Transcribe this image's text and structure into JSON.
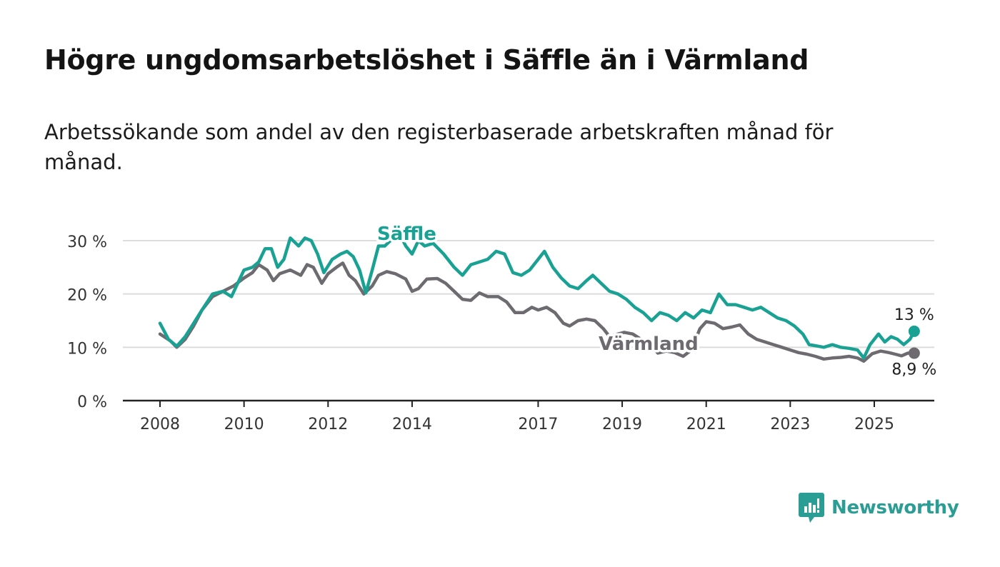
{
  "header": {
    "title": "Högre ungdomsarbetslöshet i Säffle än i Värmland",
    "subtitle": "Arbetssökande som andel av den registerbaserade arbetskraften månad för månad."
  },
  "brand": {
    "name": "Newsworthy",
    "icon": "chart-speech-bubble-icon",
    "color": "#2a9d94"
  },
  "chart_data": {
    "type": "line",
    "xlim": [
      2007.7,
      2026.5
    ],
    "ylim": [
      0,
      30
    ],
    "yticks": [
      0,
      10,
      20,
      30
    ],
    "ytick_labels": [
      "0 %",
      "10 %",
      "20 %",
      "30 %"
    ],
    "xticks": [
      2008,
      2010,
      2012,
      2014,
      2017,
      2019,
      2021,
      2023,
      2025
    ],
    "xtick_labels": [
      "2008",
      "2010",
      "2012",
      "2014",
      "2017",
      "2019",
      "2021",
      "2023",
      "2025"
    ],
    "grid": "horizontal",
    "series": [
      {
        "name": "Värmland",
        "color": "#6e6b70",
        "end_label": "8,9 %",
        "points": [
          [
            2008.0,
            12.5
          ],
          [
            2008.25,
            11.2
          ],
          [
            2008.4,
            10.0
          ],
          [
            2008.6,
            11.5
          ],
          [
            2008.8,
            14.0
          ],
          [
            2009.0,
            17.0
          ],
          [
            2009.25,
            19.5
          ],
          [
            2009.5,
            20.5
          ],
          [
            2009.75,
            21.5
          ],
          [
            2010.0,
            23.0
          ],
          [
            2010.2,
            24.0
          ],
          [
            2010.35,
            25.5
          ],
          [
            2010.55,
            24.5
          ],
          [
            2010.7,
            22.5
          ],
          [
            2010.85,
            23.8
          ],
          [
            2011.1,
            24.5
          ],
          [
            2011.35,
            23.5
          ],
          [
            2011.5,
            25.5
          ],
          [
            2011.65,
            25.0
          ],
          [
            2011.85,
            22.0
          ],
          [
            2012.0,
            23.8
          ],
          [
            2012.2,
            25.0
          ],
          [
            2012.35,
            25.8
          ],
          [
            2012.5,
            23.5
          ],
          [
            2012.65,
            22.5
          ],
          [
            2012.85,
            20.0
          ],
          [
            2013.05,
            21.5
          ],
          [
            2013.2,
            23.5
          ],
          [
            2013.4,
            24.2
          ],
          [
            2013.6,
            23.8
          ],
          [
            2013.85,
            22.8
          ],
          [
            2014.0,
            20.5
          ],
          [
            2014.15,
            21.0
          ],
          [
            2014.35,
            22.8
          ],
          [
            2014.6,
            22.9
          ],
          [
            2014.8,
            22.0
          ],
          [
            2015.0,
            20.5
          ],
          [
            2015.2,
            19.0
          ],
          [
            2015.4,
            18.8
          ],
          [
            2015.6,
            20.2
          ],
          [
            2015.8,
            19.5
          ],
          [
            2016.05,
            19.5
          ],
          [
            2016.25,
            18.5
          ],
          [
            2016.45,
            16.5
          ],
          [
            2016.65,
            16.5
          ],
          [
            2016.85,
            17.5
          ],
          [
            2017.0,
            17.0
          ],
          [
            2017.2,
            17.5
          ],
          [
            2017.4,
            16.5
          ],
          [
            2017.6,
            14.5
          ],
          [
            2017.75,
            14.0
          ],
          [
            2017.95,
            15.0
          ],
          [
            2018.15,
            15.3
          ],
          [
            2018.35,
            15.0
          ],
          [
            2018.55,
            13.5
          ],
          [
            2018.7,
            12.0
          ],
          [
            2018.9,
            12.5
          ],
          [
            2019.05,
            12.8
          ],
          [
            2019.25,
            12.5
          ],
          [
            2019.45,
            11.5
          ],
          [
            2019.65,
            10.8
          ],
          [
            2019.85,
            8.9
          ],
          [
            2020.05,
            9.3
          ],
          [
            2020.25,
            9.0
          ],
          [
            2020.45,
            8.3
          ],
          [
            2020.65,
            9.5
          ],
          [
            2020.85,
            13.5
          ],
          [
            2021.0,
            14.8
          ],
          [
            2021.2,
            14.5
          ],
          [
            2021.4,
            13.5
          ],
          [
            2021.6,
            13.8
          ],
          [
            2021.8,
            14.2
          ],
          [
            2022.0,
            12.5
          ],
          [
            2022.2,
            11.5
          ],
          [
            2022.4,
            11.0
          ],
          [
            2022.6,
            10.5
          ],
          [
            2022.8,
            10.0
          ],
          [
            2023.0,
            9.5
          ],
          [
            2023.2,
            9.0
          ],
          [
            2023.4,
            8.7
          ],
          [
            2023.6,
            8.3
          ],
          [
            2023.8,
            7.8
          ],
          [
            2024.0,
            8.0
          ],
          [
            2024.2,
            8.1
          ],
          [
            2024.4,
            8.3
          ],
          [
            2024.6,
            8.0
          ],
          [
            2024.75,
            7.4
          ],
          [
            2024.95,
            8.8
          ],
          [
            2025.15,
            9.3
          ],
          [
            2025.35,
            9.0
          ],
          [
            2025.5,
            8.7
          ],
          [
            2025.65,
            8.4
          ],
          [
            2025.8,
            8.9
          ],
          [
            2025.95,
            8.9
          ]
        ]
      },
      {
        "name": "Säffle",
        "color": "#19a294",
        "end_label": "13 %",
        "points": [
          [
            2008.0,
            14.5
          ],
          [
            2008.2,
            11.5
          ],
          [
            2008.4,
            10.2
          ],
          [
            2008.6,
            12.0
          ],
          [
            2008.8,
            14.5
          ],
          [
            2009.0,
            17.0
          ],
          [
            2009.25,
            20.0
          ],
          [
            2009.5,
            20.5
          ],
          [
            2009.7,
            19.5
          ],
          [
            2009.85,
            22.0
          ],
          [
            2010.0,
            24.5
          ],
          [
            2010.2,
            25.0
          ],
          [
            2010.35,
            26.0
          ],
          [
            2010.5,
            28.5
          ],
          [
            2010.65,
            28.5
          ],
          [
            2010.8,
            25.0
          ],
          [
            2010.95,
            26.5
          ],
          [
            2011.1,
            30.5
          ],
          [
            2011.3,
            29.0
          ],
          [
            2011.45,
            30.5
          ],
          [
            2011.6,
            30.0
          ],
          [
            2011.75,
            27.5
          ],
          [
            2011.9,
            24.0
          ],
          [
            2012.1,
            26.5
          ],
          [
            2012.3,
            27.5
          ],
          [
            2012.45,
            28.0
          ],
          [
            2012.6,
            27.0
          ],
          [
            2012.75,
            24.5
          ],
          [
            2012.9,
            20.2
          ],
          [
            2013.05,
            24.5
          ],
          [
            2013.2,
            29.0
          ],
          [
            2013.35,
            29.0
          ],
          [
            2013.55,
            30.5
          ],
          [
            2013.7,
            31.2
          ],
          [
            2013.85,
            29.0
          ],
          [
            2014.0,
            27.5
          ],
          [
            2014.15,
            30.0
          ],
          [
            2014.3,
            29.0
          ],
          [
            2014.5,
            29.5
          ],
          [
            2014.75,
            27.5
          ],
          [
            2015.0,
            25.0
          ],
          [
            2015.2,
            23.5
          ],
          [
            2015.4,
            25.5
          ],
          [
            2015.6,
            26.0
          ],
          [
            2015.8,
            26.5
          ],
          [
            2016.0,
            28.0
          ],
          [
            2016.2,
            27.5
          ],
          [
            2016.4,
            24.0
          ],
          [
            2016.6,
            23.5
          ],
          [
            2016.8,
            24.5
          ],
          [
            2017.0,
            26.5
          ],
          [
            2017.15,
            28.0
          ],
          [
            2017.35,
            25.0
          ],
          [
            2017.55,
            23.0
          ],
          [
            2017.75,
            21.5
          ],
          [
            2017.95,
            21.0
          ],
          [
            2018.15,
            22.5
          ],
          [
            2018.3,
            23.5
          ],
          [
            2018.5,
            22.0
          ],
          [
            2018.7,
            20.5
          ],
          [
            2018.9,
            20.0
          ],
          [
            2019.1,
            19.0
          ],
          [
            2019.3,
            17.5
          ],
          [
            2019.5,
            16.5
          ],
          [
            2019.7,
            15.0
          ],
          [
            2019.9,
            16.5
          ],
          [
            2020.1,
            16.0
          ],
          [
            2020.3,
            15.0
          ],
          [
            2020.5,
            16.5
          ],
          [
            2020.7,
            15.5
          ],
          [
            2020.9,
            17.0
          ],
          [
            2021.1,
            16.5
          ],
          [
            2021.3,
            20.0
          ],
          [
            2021.5,
            18.0
          ],
          [
            2021.7,
            18.0
          ],
          [
            2021.9,
            17.5
          ],
          [
            2022.1,
            17.0
          ],
          [
            2022.3,
            17.5
          ],
          [
            2022.5,
            16.5
          ],
          [
            2022.7,
            15.5
          ],
          [
            2022.9,
            15.0
          ],
          [
            2023.1,
            14.0
          ],
          [
            2023.3,
            12.5
          ],
          [
            2023.45,
            10.5
          ],
          [
            2023.6,
            10.3
          ],
          [
            2023.8,
            10.0
          ],
          [
            2024.0,
            10.5
          ],
          [
            2024.2,
            10.0
          ],
          [
            2024.4,
            9.8
          ],
          [
            2024.6,
            9.5
          ],
          [
            2024.75,
            8.0
          ],
          [
            2024.9,
            10.5
          ],
          [
            2025.1,
            12.5
          ],
          [
            2025.25,
            11.0
          ],
          [
            2025.4,
            12.0
          ],
          [
            2025.55,
            11.5
          ],
          [
            2025.7,
            10.5
          ],
          [
            2025.85,
            11.5
          ],
          [
            2025.95,
            13.0
          ]
        ]
      }
    ]
  }
}
